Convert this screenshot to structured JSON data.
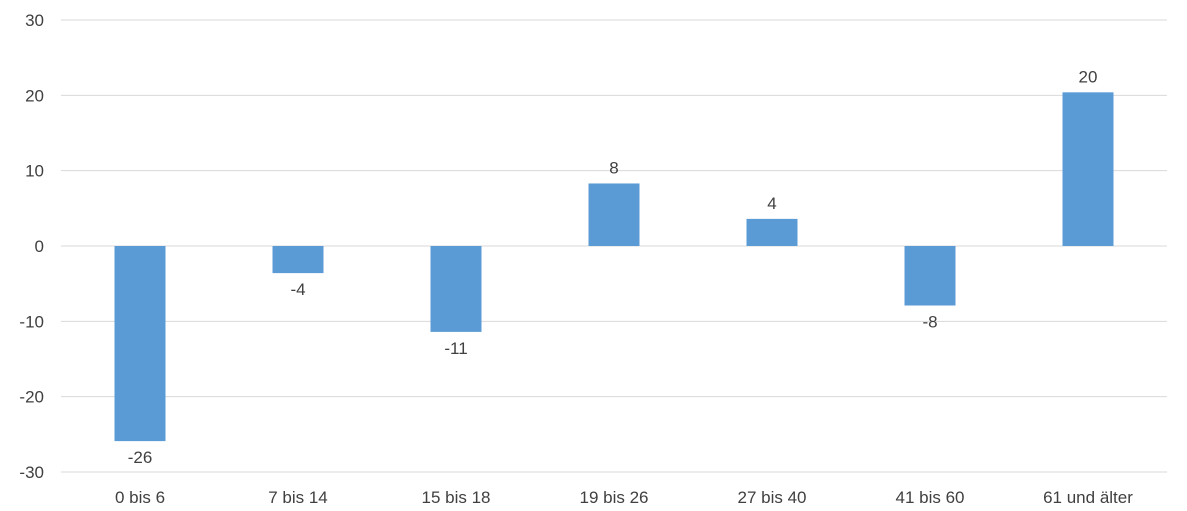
{
  "chart_data": {
    "type": "bar",
    "title": "",
    "xlabel": "",
    "ylabel": "",
    "categories": [
      "0 bis 6",
      "7 bis 14",
      "15 bis 18",
      "19 bis 26",
      "27 bis 40",
      "41 bis 60",
      "61 und älter"
    ],
    "values": [
      -25.9,
      -3.6,
      -11.4,
      8.3,
      3.6,
      -7.9,
      20.4
    ],
    "data_labels": [
      "-26",
      "-4",
      "-11",
      "8",
      "4",
      "-8",
      "20"
    ],
    "ylim": [
      -30,
      30
    ],
    "yticks": [
      30,
      20,
      10,
      0,
      -10,
      -20,
      -30
    ],
    "grid": true,
    "legend": "none",
    "colors": {
      "bar": "#5b9bd5",
      "grid": "#d9d9d9",
      "text": "#404040"
    }
  }
}
